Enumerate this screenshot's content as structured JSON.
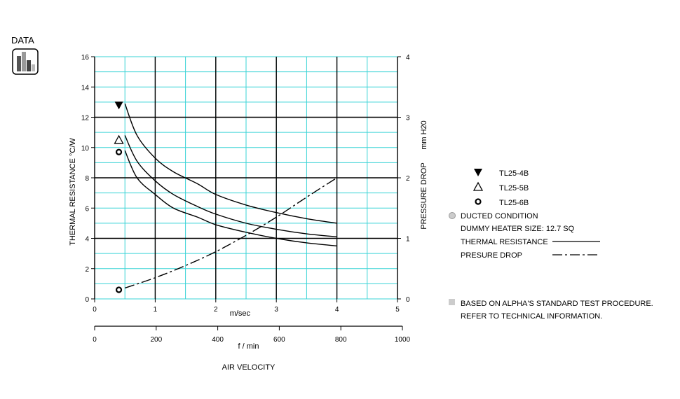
{
  "logo": {
    "label": "DATA"
  },
  "chart_data": {
    "type": "line",
    "x_primary": {
      "label": "m/sec",
      "range": [
        0,
        5
      ],
      "ticks": [
        0,
        1,
        2,
        3,
        4,
        5
      ]
    },
    "x_secondary": {
      "label": "f / min",
      "range": [
        0,
        1000
      ],
      "ticks": [
        0,
        200,
        400,
        600,
        800,
        1000
      ]
    },
    "x_title": "AIR VELOCITY",
    "y_left": {
      "label": "THERMAL  RESISTANCE  °C/W",
      "range": [
        0,
        16
      ],
      "ticks": [
        0,
        2,
        4,
        6,
        8,
        10,
        12,
        14,
        16
      ]
    },
    "y_right": {
      "label": "PRESSURE  DROP",
      "unit": "mm H20",
      "range": [
        0,
        4
      ],
      "ticks": [
        0,
        1,
        2,
        3,
        4
      ]
    },
    "grid": true,
    "series": [
      {
        "name": "TL25-4B",
        "kind": "thermal",
        "marker": "filled-down-triangle",
        "marker_at": [
          0.4,
          12.8
        ],
        "points": [
          [
            0.5,
            12.9
          ],
          [
            0.7,
            10.8
          ],
          [
            1.0,
            9.3
          ],
          [
            1.3,
            8.4
          ],
          [
            1.7,
            7.6
          ],
          [
            2.0,
            6.9
          ],
          [
            2.5,
            6.2
          ],
          [
            3.0,
            5.7
          ],
          [
            3.5,
            5.3
          ],
          [
            4.0,
            5.0
          ]
        ]
      },
      {
        "name": "TL25-5B",
        "kind": "thermal",
        "marker": "open-up-triangle",
        "marker_at": [
          0.4,
          10.5
        ],
        "points": [
          [
            0.5,
            10.8
          ],
          [
            0.7,
            9.1
          ],
          [
            1.0,
            7.8
          ],
          [
            1.3,
            6.9
          ],
          [
            1.7,
            6.1
          ],
          [
            2.0,
            5.6
          ],
          [
            2.5,
            5.0
          ],
          [
            3.0,
            4.6
          ],
          [
            3.5,
            4.3
          ],
          [
            4.0,
            4.1
          ]
        ]
      },
      {
        "name": "TL25-6B",
        "kind": "thermal",
        "marker": "circle",
        "marker_at": [
          0.4,
          9.7
        ],
        "points": [
          [
            0.5,
            9.8
          ],
          [
            0.7,
            8.0
          ],
          [
            1.0,
            6.9
          ],
          [
            1.3,
            6.0
          ],
          [
            1.7,
            5.4
          ],
          [
            2.0,
            4.9
          ],
          [
            2.5,
            4.4
          ],
          [
            3.0,
            4.0
          ],
          [
            3.5,
            3.7
          ],
          [
            4.0,
            3.5
          ]
        ]
      },
      {
        "name": "PRESURE DROP",
        "kind": "pressure",
        "axis": "right",
        "marker": "circle",
        "marker_at": [
          0.4,
          0.15
        ],
        "points": [
          [
            0.5,
            0.18
          ],
          [
            1.0,
            0.35
          ],
          [
            1.5,
            0.55
          ],
          [
            2.0,
            0.78
          ],
          [
            2.5,
            1.05
          ],
          [
            3.0,
            1.35
          ],
          [
            3.5,
            1.68
          ],
          [
            4.0,
            2.0
          ]
        ]
      }
    ],
    "legend": {
      "entries": [
        {
          "label": "TL25-4B",
          "marker": "filled-down-triangle"
        },
        {
          "label": "TL25-5B",
          "marker": "open-up-triangle"
        },
        {
          "label": "TL25-6B",
          "marker": "circle"
        }
      ],
      "conditions": {
        "title": "DUCTED CONDITION",
        "heater": "DUMMY HEATER SIZE: 12.7 SQ",
        "thermal_label": "THERMAL RESISTANCE",
        "pressure_label": "PRESURE DROP"
      },
      "note": [
        "BASED ON ALPHA'S STANDARD TEST PROCEDURE.",
        "REFER TO TECHNICAL INFORMATION."
      ]
    }
  }
}
